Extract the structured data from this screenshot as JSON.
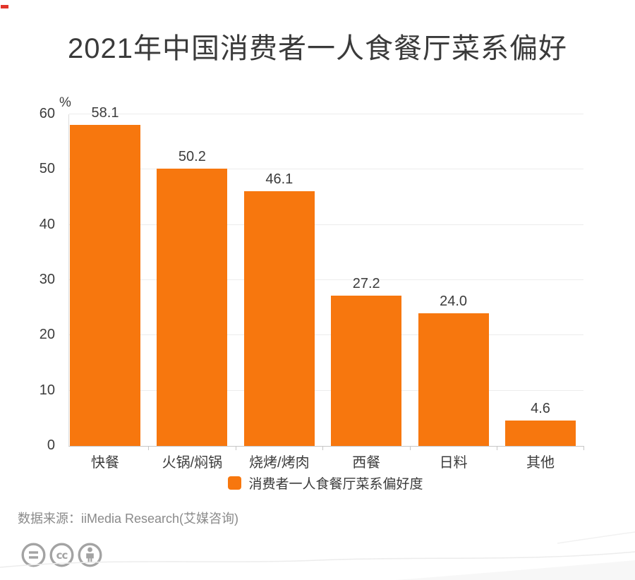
{
  "page": {
    "title": "2021年中国消费者一人食餐厅菜系偏好",
    "source_note": "数据来源：iiMedia Research(艾媒咨询)"
  },
  "chart_data": {
    "type": "bar",
    "title": "2021年中国消费者一人食餐厅菜系偏好",
    "categories": [
      "快餐",
      "火锅/焖锅",
      "烧烤/烤肉",
      "西餐",
      "日料",
      "其他"
    ],
    "values": [
      58.1,
      50.2,
      46.1,
      27.2,
      24.0,
      4.6
    ],
    "value_labels": [
      "58.1",
      "50.2",
      "46.1",
      "27.2",
      "24.0",
      "4.6"
    ],
    "xlabel": "",
    "ylabel": "%",
    "ylim": [
      0,
      60
    ],
    "yticks": [
      0,
      10,
      20,
      30,
      40,
      50,
      60
    ],
    "grid": true,
    "legend": "消费者一人食餐厅菜系偏好度",
    "legend_position": "bottom",
    "bar_color": "#F7770E"
  },
  "footer": {
    "icons": [
      "equals-circle-icon",
      "cc-circle-icon",
      "person-circle-icon"
    ]
  },
  "colors": {
    "bar": "#F7770E",
    "text": "#3C3C3C",
    "muted": "#8A8A8A",
    "grid": "#ECECEC",
    "axis": "#C6C6C6",
    "badge": "#A3A3A3",
    "accent_red": "#E2352B"
  }
}
